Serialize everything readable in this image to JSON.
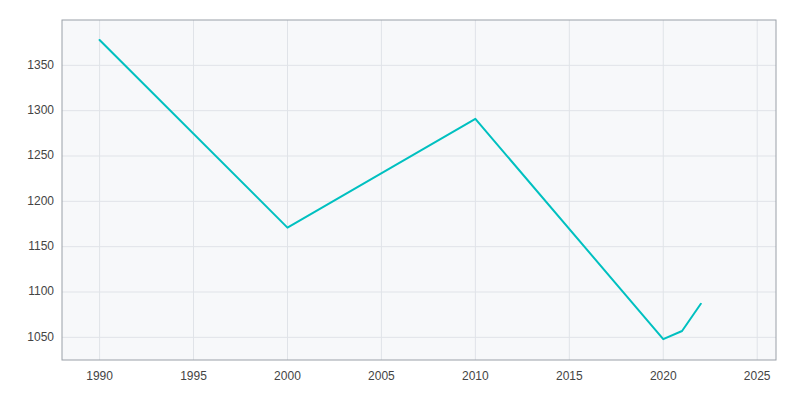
{
  "chart_data": {
    "type": "line",
    "x": [
      1990,
      2000,
      2010,
      2020,
      2021,
      2022
    ],
    "values": [
      1378,
      1171,
      1291,
      1048,
      1057,
      1087
    ],
    "color": "#00C0C0",
    "xlim": [
      1988,
      2026
    ],
    "ylim": [
      1025,
      1400
    ],
    "xticks": [
      1990,
      1995,
      2000,
      2005,
      2010,
      2015,
      2020,
      2025
    ],
    "yticks": [
      1050,
      1100,
      1150,
      1200,
      1250,
      1300,
      1350
    ],
    "grid": true
  }
}
